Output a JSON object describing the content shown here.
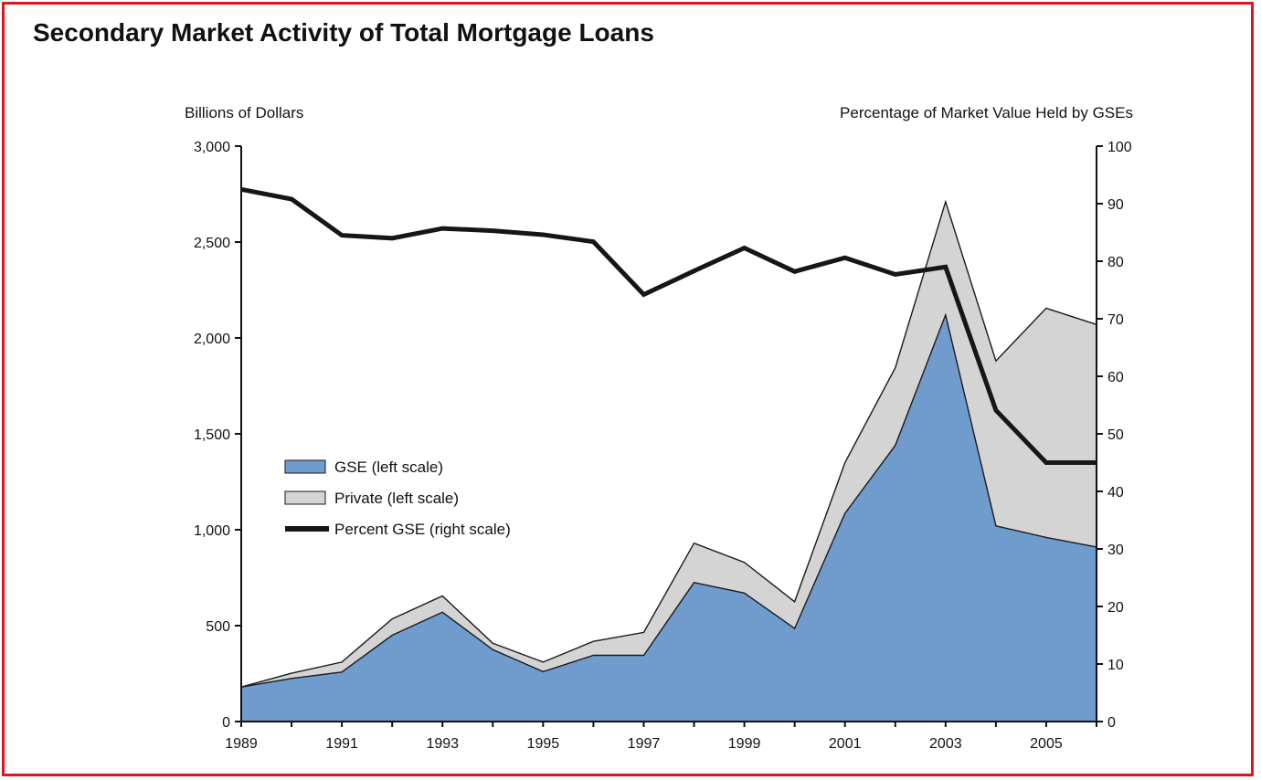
{
  "title": "Secondary Market Activity of Total Mortgage Loans",
  "colors": {
    "frame": "#e0141e",
    "gse": "#6f9ccd",
    "private": "#d4d4d4",
    "line": "#161616",
    "axis": "#111111"
  },
  "chart_data": {
    "type": "area",
    "left_axis_label": "Billions of Dollars",
    "right_axis_label": "Percentage of Market Value Held by GSEs",
    "left_ylim": [
      0,
      3000
    ],
    "right_ylim": [
      0,
      100
    ],
    "xlim": [
      1989,
      2006
    ],
    "x": [
      1989,
      1990,
      1991,
      1992,
      1993,
      1994,
      1995,
      1996,
      1997,
      1998,
      1999,
      2000,
      2001,
      2002,
      2003,
      2004,
      2005,
      2006
    ],
    "x_tick_labels": [
      "1989",
      "1991",
      "1993",
      "1995",
      "1997",
      "1999",
      "2001",
      "2003",
      "2005"
    ],
    "left_tick_labels": [
      "0",
      "500",
      "1,000",
      "1,500",
      "2,000",
      "2,500",
      "3,000"
    ],
    "right_tick_labels": [
      "0",
      "10",
      "20",
      "30",
      "40",
      "50",
      "60",
      "70",
      "80",
      "90",
      "100"
    ],
    "legend": [
      "GSE (left scale)",
      "Private (left scale)",
      "Percent GSE (right scale)"
    ],
    "legend_position": "middle-left",
    "grid": false,
    "series": [
      {
        "name": "GSE (left scale)",
        "axis": "left",
        "values": [
          180,
          225,
          258,
          450,
          570,
          375,
          260,
          345,
          345,
          725,
          670,
          485,
          1085,
          1440,
          2120,
          1020,
          960,
          910
        ]
      },
      {
        "name": "Private (left scale)",
        "axis": "left",
        "stacked_on": "GSE (left scale)",
        "values": [
          0,
          27,
          52,
          85,
          85,
          33,
          50,
          73,
          120,
          205,
          160,
          140,
          265,
          405,
          590,
          860,
          1195,
          1160
        ]
      },
      {
        "name": "Percent GSE (right scale)",
        "axis": "right",
        "values": [
          92.5,
          90.8,
          84.5,
          84.0,
          85.7,
          85.3,
          84.6,
          83.4,
          74.2,
          78.3,
          82.3,
          78.2,
          80.6,
          77.7,
          79.0,
          54.1,
          45.0,
          45.0
        ]
      }
    ]
  }
}
